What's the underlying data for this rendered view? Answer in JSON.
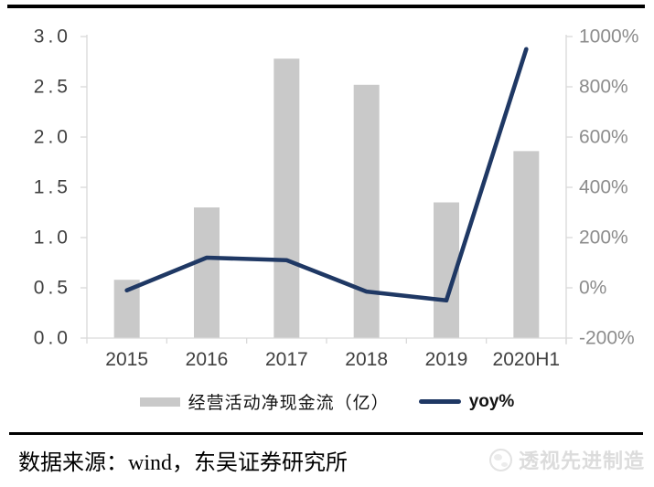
{
  "chart_data": {
    "type": "bar",
    "subtype": "combo-bar-line-dual-axis",
    "categories": [
      "2015",
      "2016",
      "2017",
      "2018",
      "2019",
      "2020H1"
    ],
    "series": [
      {
        "name": "经营活动净现金流（亿）",
        "type": "bar",
        "axis": "left",
        "color": "#c9c9c9",
        "values": [
          0.58,
          1.3,
          2.78,
          2.52,
          1.35,
          1.86
        ]
      },
      {
        "name": "yoy%",
        "type": "line",
        "axis": "right",
        "color": "#1f3864",
        "values": [
          -10,
          120,
          110,
          -15,
          -50,
          950
        ]
      }
    ],
    "left_axis": {
      "min": 0,
      "max": 3,
      "step": 0.5,
      "tick_values": [
        3.0,
        2.5,
        2.0,
        1.5,
        1.0,
        0.5,
        0.0
      ],
      "tick_labels": [
        "3.0",
        "2.5",
        "2.0",
        "1.5",
        "1.0",
        "0.5",
        "0.0"
      ]
    },
    "right_axis": {
      "min": -200,
      "max": 1000,
      "step": 200,
      "tick_values": [
        1000,
        800,
        600,
        400,
        200,
        0,
        -200
      ],
      "tick_labels": [
        "1000%",
        "800%",
        "600%",
        "400%",
        "200%",
        "0%",
        "-200%"
      ]
    },
    "grid": false,
    "legend_position": "bottom",
    "title": ""
  },
  "footer": {
    "source": "数据来源：wind，东吴证券研究所",
    "watermark": "透视先进制造"
  }
}
